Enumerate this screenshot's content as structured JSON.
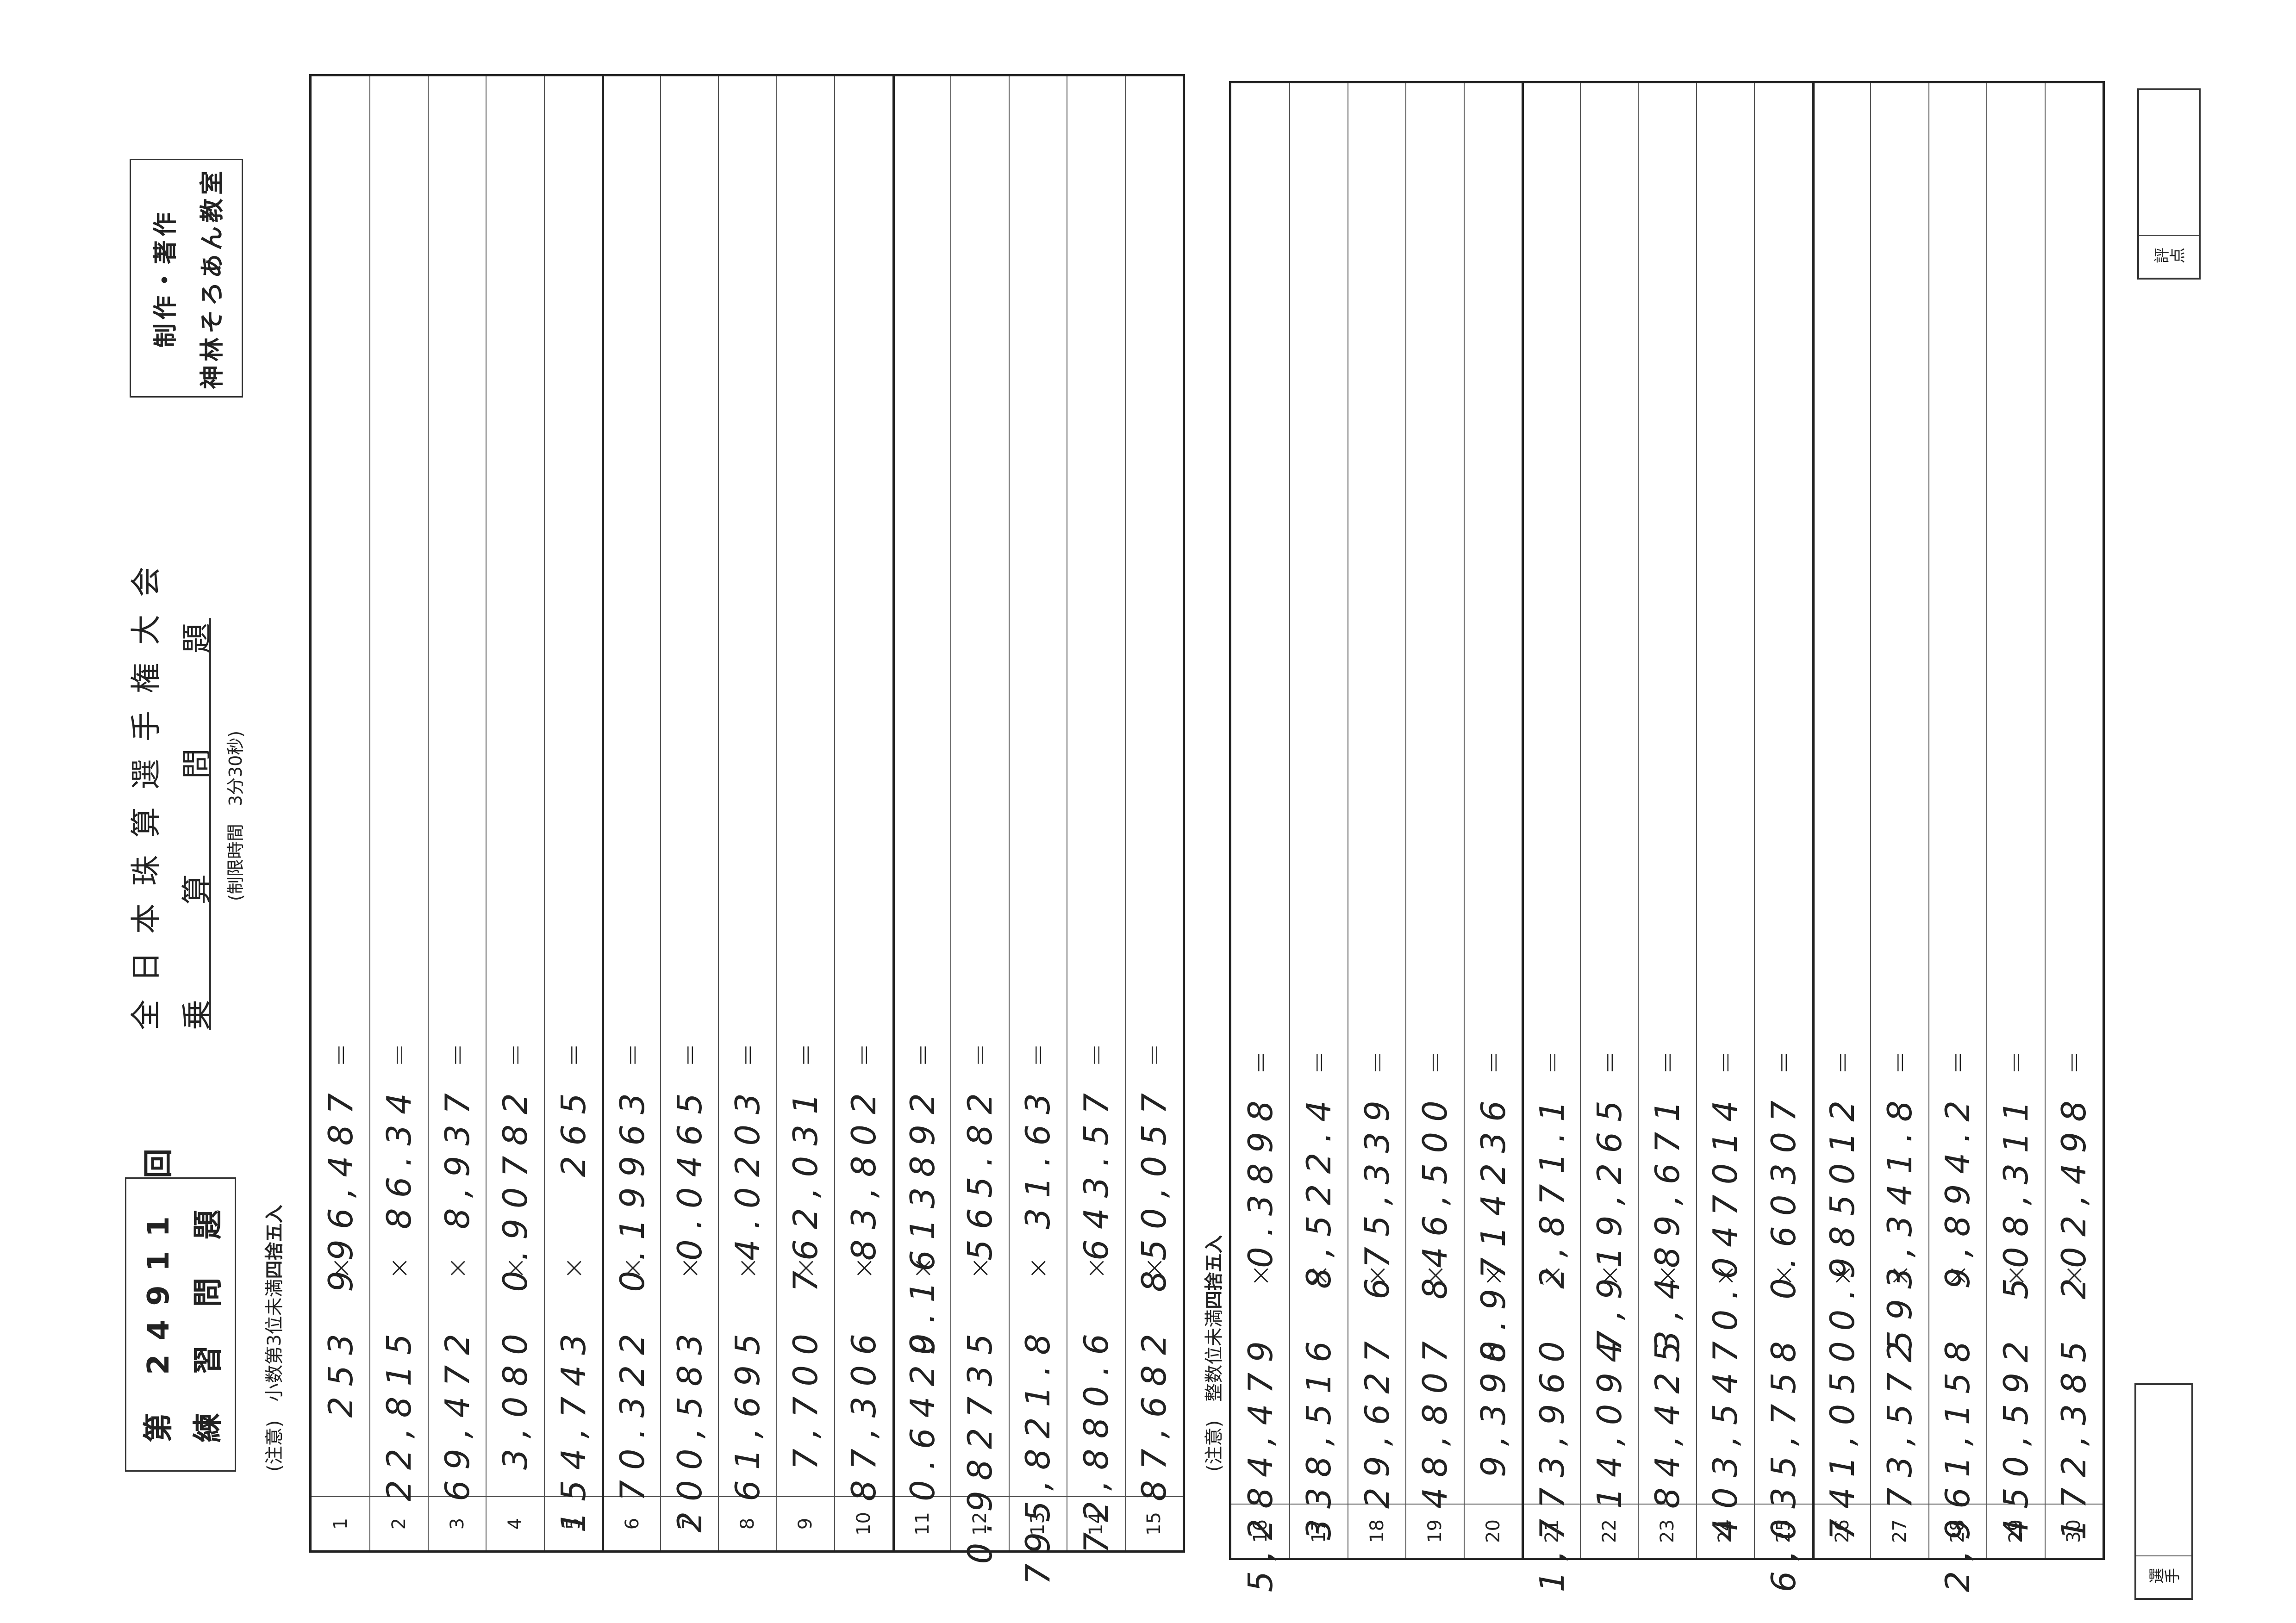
{
  "header": {
    "round_line": "第 24911 回",
    "practice_line": "練 習 問 題",
    "main_title": "全日本珠算選手権大会",
    "subtitle": [
      "乗",
      "算",
      "問",
      "題"
    ],
    "time_limit": "(制限時間　3分30秒)",
    "credit_line1": "制作・著作",
    "credit_line2": "神林そろあん教室"
  },
  "notes": {
    "section1_prefix": "(注意)　小数第3位未満",
    "section1_bold": "四捨五入",
    "section2_prefix": "(注意)　整数位未満",
    "section2_bold": "四捨五入"
  },
  "symbols": {
    "times": "×",
    "equals": "="
  },
  "section1": [
    {
      "n": "1",
      "a": "253",
      "b": "996,487"
    },
    {
      "n": "2",
      "a": "22,815",
      "b": "86.34"
    },
    {
      "n": "3",
      "a": "69,472",
      "b": "8,937"
    },
    {
      "n": "4",
      "a": "3,080",
      "b": "0.90782"
    },
    {
      "n": "5",
      "a": "154,743",
      "b": "265"
    },
    {
      "n": "6",
      "a": "70.322",
      "b": "0.19963"
    },
    {
      "n": "7",
      "a": "200,583",
      "b": "0.0465"
    },
    {
      "n": "8",
      "a": "61,695",
      "b": "4.0203"
    },
    {
      "n": "9",
      "a": "7,700",
      "b": "762,031"
    },
    {
      "n": "10",
      "a": "87,306",
      "b": "83,802"
    },
    {
      "n": "11",
      "a": "0.6429",
      "b": "0.1613892"
    },
    {
      "n": "12",
      "a": "0.982735",
      "b": "565.82"
    },
    {
      "n": "13",
      "a": "795,821.8",
      "b": "31.63"
    },
    {
      "n": "14",
      "a": "72,880.6",
      "b": "643.57"
    },
    {
      "n": "15",
      "a": "87,682",
      "b": "850,057"
    }
  ],
  "section2": [
    {
      "n": "16",
      "a": "5,284,479",
      "b": "0.3898"
    },
    {
      "n": "17",
      "a": "338,516",
      "b": "8,522.4"
    },
    {
      "n": "18",
      "a": "29,627",
      "b": "675,339"
    },
    {
      "n": "19",
      "a": "48,807",
      "b": "846,500"
    },
    {
      "n": "20",
      "a": "9,398",
      "b": "0.9714236"
    },
    {
      "n": "21",
      "a": "1,773,960",
      "b": "2,871.1"
    },
    {
      "n": "22",
      "a": "14,094",
      "b": "7,919,265"
    },
    {
      "n": "23",
      "a": "84,425",
      "b": "3,489,671"
    },
    {
      "n": "24",
      "a": "403,547",
      "b": "0.047014"
    },
    {
      "n": "25",
      "a": "6,035,758",
      "b": "0.60307"
    },
    {
      "n": "26",
      "a": "741,050",
      "b": "0.985012"
    },
    {
      "n": "27",
      "a": "73,572",
      "b": "593,341.8"
    },
    {
      "n": "28",
      "a": "2,961,158",
      "b": "9,894.2"
    },
    {
      "n": "29",
      "a": "450,592",
      "b": "508,311"
    },
    {
      "n": "30",
      "a": "172,385",
      "b": "202,498"
    }
  ],
  "footer": {
    "player_label": "選手",
    "score_label": "評点"
  }
}
